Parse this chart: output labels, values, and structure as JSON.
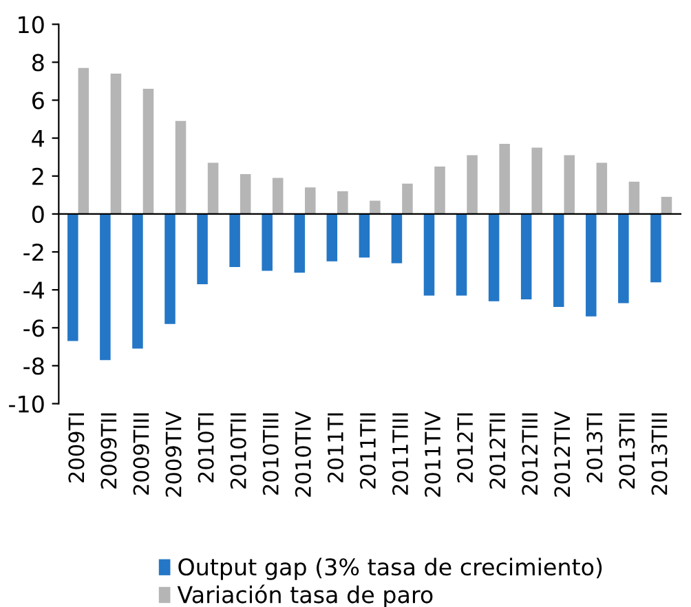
{
  "chart_data": {
    "type": "bar",
    "categories": [
      "2009TI",
      "2009TII",
      "2009TIII",
      "2009TIV",
      "2010TI",
      "2010TII",
      "2010TIII",
      "2010TIV",
      "2011TI",
      "2011TII",
      "2011TIII",
      "2011TIV",
      "2012TI",
      "2012TII",
      "2012TIII",
      "2012TIV",
      "2013TI",
      "2013TII",
      "2013TIII"
    ],
    "series": [
      {
        "name": "Output gap (3% tasa de crecimiento)",
        "color": "#2477c6",
        "values": [
          -6.7,
          -7.7,
          -7.1,
          -5.8,
          -3.7,
          -2.8,
          -3.0,
          -3.1,
          -2.5,
          -2.3,
          -2.6,
          -4.3,
          -4.3,
          -4.6,
          -4.5,
          -4.9,
          -5.4,
          -4.7,
          -3.6
        ]
      },
      {
        "name": "Variación tasa de paro",
        "color": "#b5b5b5",
        "values": [
          7.7,
          7.4,
          6.6,
          4.9,
          2.7,
          2.1,
          1.9,
          1.4,
          1.2,
          0.7,
          1.6,
          2.5,
          3.1,
          3.7,
          3.5,
          3.1,
          2.7,
          1.7,
          0.9
        ]
      }
    ],
    "ylim": [
      -10,
      10
    ],
    "yticks": [
      -10,
      -8,
      -6,
      -4,
      -2,
      0,
      2,
      4,
      6,
      8,
      10
    ],
    "legend": "bottom"
  }
}
